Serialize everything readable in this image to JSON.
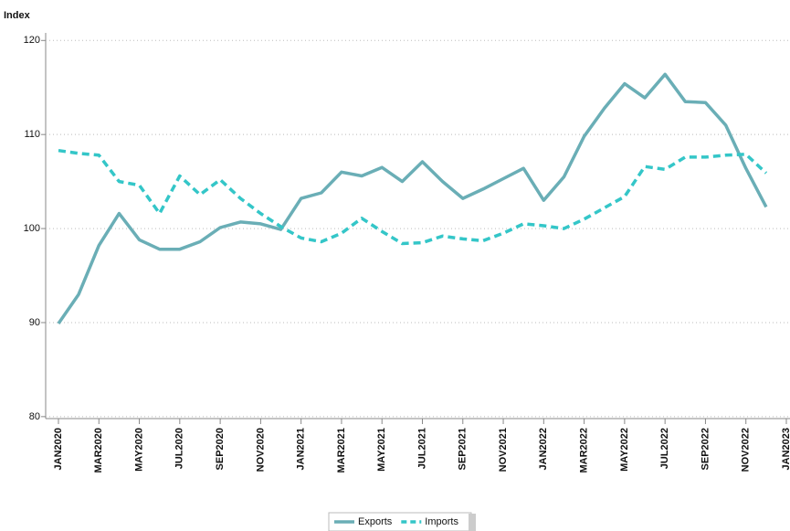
{
  "chart_data": {
    "type": "line",
    "y_axis_title": "Index",
    "categories": [
      "JAN2020",
      null,
      "MAR2020",
      null,
      "MAY2020",
      null,
      "JUL2020",
      null,
      "SEP2020",
      null,
      "NOV2020",
      null,
      "JAN2021",
      null,
      "MAR2021",
      null,
      "MAY2021",
      null,
      "JUL2021",
      null,
      "SEP2021",
      null,
      "NOV2021",
      null,
      "JAN2022",
      null,
      "MAR2022",
      null,
      "MAY2022",
      null,
      "JUL2022",
      null,
      "SEP2022",
      null,
      "NOV2022",
      null,
      "JAN2023"
    ],
    "series": [
      {
        "name": "Exports",
        "color": "#6aaeb6",
        "dashed": false,
        "values": [
          89.9,
          93.0,
          98.2,
          101.6,
          98.8,
          97.8,
          97.8,
          98.6,
          100.1,
          100.7,
          100.5,
          99.9,
          103.2,
          103.8,
          106.0,
          105.6,
          106.5,
          105.0,
          107.1,
          105.0,
          103.2,
          104.2,
          105.3,
          106.4,
          103.0,
          105.5,
          109.8,
          112.8,
          115.4,
          113.9,
          116.4,
          113.5,
          113.4,
          111.0,
          106.4,
          102.3,
          null
        ]
      },
      {
        "name": "Imports",
        "color": "#34c6c8",
        "dashed": true,
        "values": [
          108.3,
          108.0,
          107.8,
          105.0,
          104.6,
          101.6,
          105.6,
          103.6,
          105.2,
          103.2,
          101.6,
          100.2,
          99.0,
          98.6,
          99.5,
          101.1,
          99.7,
          98.4,
          98.5,
          99.2,
          98.9,
          98.7,
          99.5,
          100.5,
          100.3,
          100.0,
          101.0,
          102.2,
          103.4,
          106.6,
          106.3,
          107.6,
          107.6,
          107.8,
          107.9,
          105.9,
          null
        ]
      }
    ],
    "ylim": [
      79.5,
      121
    ],
    "yticks": [
      80,
      90,
      100,
      110,
      120
    ],
    "grid": true,
    "legend": "bottom"
  }
}
